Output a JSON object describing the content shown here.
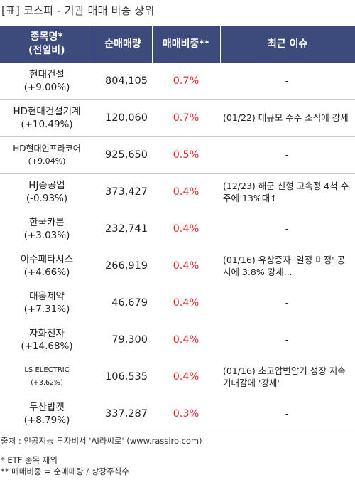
{
  "title": "[표] 코스피 - 기관 매매 비중 상위",
  "headers": {
    "name_line1": "종목명*",
    "name_line2": "(전일비)",
    "volume": "순매매량",
    "ratio": "매매비중**",
    "issue": "최근 이슈"
  },
  "rows": [
    {
      "name": "현대건설",
      "change": "(+9.00%)",
      "volume": "804,105",
      "ratio": "0.7%",
      "issue": "-"
    },
    {
      "name": "HD현대건설기계",
      "change": "(+10.49%)",
      "volume": "120,060",
      "ratio": "0.7%",
      "issue": "(01/22) 대규모 수주 소식에 강세"
    },
    {
      "name": "HD현대인프라코어",
      "change": "(+9.04%)",
      "volume": "925,650",
      "ratio": "0.5%",
      "issue": "-"
    },
    {
      "name": "HJ중공업",
      "change": "(-0.93%)",
      "volume": "373,427",
      "ratio": "0.4%",
      "issue": "(12/23) 해군 신형 고속정 4척 수주에 13%대↑"
    },
    {
      "name": "한국카본",
      "change": "(+3.03%)",
      "volume": "232,741",
      "ratio": "0.4%",
      "issue": "-"
    },
    {
      "name": "이수페타시스",
      "change": "(+4.66%)",
      "volume": "266,919",
      "ratio": "0.4%",
      "issue": "(01/16) 유상증자 '일정 미정' 공시에 3.8% 강세..."
    },
    {
      "name": "대웅제약",
      "change": "(+7.31%)",
      "volume": "46,679",
      "ratio": "0.4%",
      "issue": "-"
    },
    {
      "name": "자화전자",
      "change": "(+14.68%)",
      "volume": "79,300",
      "ratio": "0.4%",
      "issue": "-"
    },
    {
      "name": "LS ELECTRIC",
      "change": "(+3.62%)",
      "volume": "106,535",
      "ratio": "0.4%",
      "issue": "(01/16) 초고압변압기 성장 지속 기대감에 '강세'"
    },
    {
      "name": "두산밥캣",
      "change": "(+8.79%)",
      "volume": "337,287",
      "ratio": "0.3%",
      "issue": "-"
    }
  ],
  "footer": {
    "source": "출처 : 인공지능 투자비서 'AI라씨로' (www.rassiro.com)",
    "note1": "* ETF 종목 제외",
    "note2": "** 매매비중 = 순매매량 / 상장주식수"
  },
  "colors": {
    "header_bg": "#3d4a7c",
    "ratio_text": "#e03131"
  }
}
